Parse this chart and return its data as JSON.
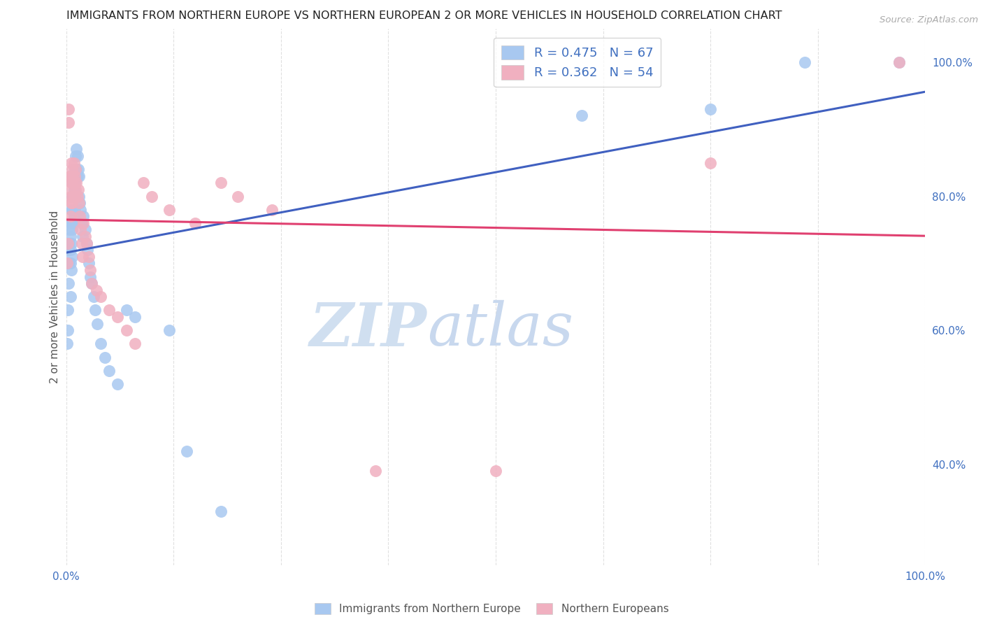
{
  "title": "IMMIGRANTS FROM NORTHERN EUROPE VS NORTHERN EUROPEAN 2 OR MORE VEHICLES IN HOUSEHOLD CORRELATION CHART",
  "source": "Source: ZipAtlas.com",
  "ylabel": "2 or more Vehicles in Household",
  "legend_blue_label": "Immigrants from Northern Europe",
  "legend_pink_label": "Northern Europeans",
  "R_blue": 0.475,
  "N_blue": 67,
  "R_pink": 0.362,
  "N_pink": 54,
  "blue_color": "#a8c8f0",
  "pink_color": "#f0b0c0",
  "blue_line_color": "#4060c0",
  "pink_line_color": "#e04070",
  "title_color": "#222222",
  "axis_color": "#4070c0",
  "watermark_color": "#d8e8f8",
  "background_color": "#ffffff",
  "grid_color": "#e0e0e0",
  "xlim": [
    0.0,
    1.0
  ],
  "ylim": [
    0.25,
    1.05
  ],
  "yticks": [
    0.4,
    0.6,
    0.8,
    1.0
  ],
  "ytick_labels": [
    "40.0%",
    "60.0%",
    "80.0%",
    "100.0%"
  ],
  "blue_x": [
    0.001,
    0.002,
    0.002,
    0.003,
    0.003,
    0.003,
    0.004,
    0.004,
    0.004,
    0.005,
    0.005,
    0.005,
    0.005,
    0.005,
    0.006,
    0.006,
    0.006,
    0.006,
    0.007,
    0.007,
    0.007,
    0.007,
    0.008,
    0.008,
    0.008,
    0.009,
    0.009,
    0.009,
    0.01,
    0.01,
    0.01,
    0.011,
    0.011,
    0.012,
    0.012,
    0.013,
    0.013,
    0.014,
    0.015,
    0.015,
    0.016,
    0.017,
    0.018,
    0.019,
    0.02,
    0.022,
    0.024,
    0.025,
    0.026,
    0.028,
    0.03,
    0.032,
    0.034,
    0.036,
    0.04,
    0.045,
    0.05,
    0.06,
    0.07,
    0.08,
    0.12,
    0.14,
    0.18,
    0.6,
    0.75,
    0.86,
    0.97
  ],
  "blue_y": [
    0.58,
    0.63,
    0.6,
    0.72,
    0.7,
    0.67,
    0.75,
    0.73,
    0.7,
    0.76,
    0.74,
    0.72,
    0.7,
    0.65,
    0.78,
    0.76,
    0.73,
    0.69,
    0.8,
    0.78,
    0.75,
    0.71,
    0.82,
    0.8,
    0.76,
    0.83,
    0.81,
    0.77,
    0.84,
    0.82,
    0.78,
    0.86,
    0.83,
    0.87,
    0.84,
    0.86,
    0.83,
    0.84,
    0.83,
    0.8,
    0.79,
    0.78,
    0.76,
    0.74,
    0.77,
    0.75,
    0.73,
    0.72,
    0.7,
    0.68,
    0.67,
    0.65,
    0.63,
    0.61,
    0.58,
    0.56,
    0.54,
    0.52,
    0.63,
    0.62,
    0.6,
    0.42,
    0.33,
    0.92,
    0.93,
    1.0,
    1.0
  ],
  "pink_x": [
    0.001,
    0.002,
    0.003,
    0.003,
    0.004,
    0.004,
    0.005,
    0.005,
    0.005,
    0.006,
    0.006,
    0.006,
    0.007,
    0.007,
    0.007,
    0.008,
    0.008,
    0.009,
    0.009,
    0.01,
    0.01,
    0.011,
    0.011,
    0.012,
    0.013,
    0.014,
    0.015,
    0.016,
    0.017,
    0.018,
    0.019,
    0.02,
    0.022,
    0.024,
    0.026,
    0.028,
    0.03,
    0.035,
    0.04,
    0.05,
    0.06,
    0.07,
    0.08,
    0.09,
    0.1,
    0.12,
    0.15,
    0.18,
    0.2,
    0.24,
    0.36,
    0.5,
    0.75,
    0.97
  ],
  "pink_y": [
    0.7,
    0.73,
    0.93,
    0.91,
    0.83,
    0.81,
    0.83,
    0.8,
    0.77,
    0.85,
    0.82,
    0.79,
    0.84,
    0.82,
    0.79,
    0.83,
    0.8,
    0.85,
    0.82,
    0.83,
    0.8,
    0.84,
    0.81,
    0.82,
    0.8,
    0.81,
    0.79,
    0.77,
    0.75,
    0.73,
    0.71,
    0.76,
    0.74,
    0.73,
    0.71,
    0.69,
    0.67,
    0.66,
    0.65,
    0.63,
    0.62,
    0.6,
    0.58,
    0.82,
    0.8,
    0.78,
    0.76,
    0.82,
    0.8,
    0.78,
    0.39,
    0.39,
    0.85,
    1.0
  ]
}
